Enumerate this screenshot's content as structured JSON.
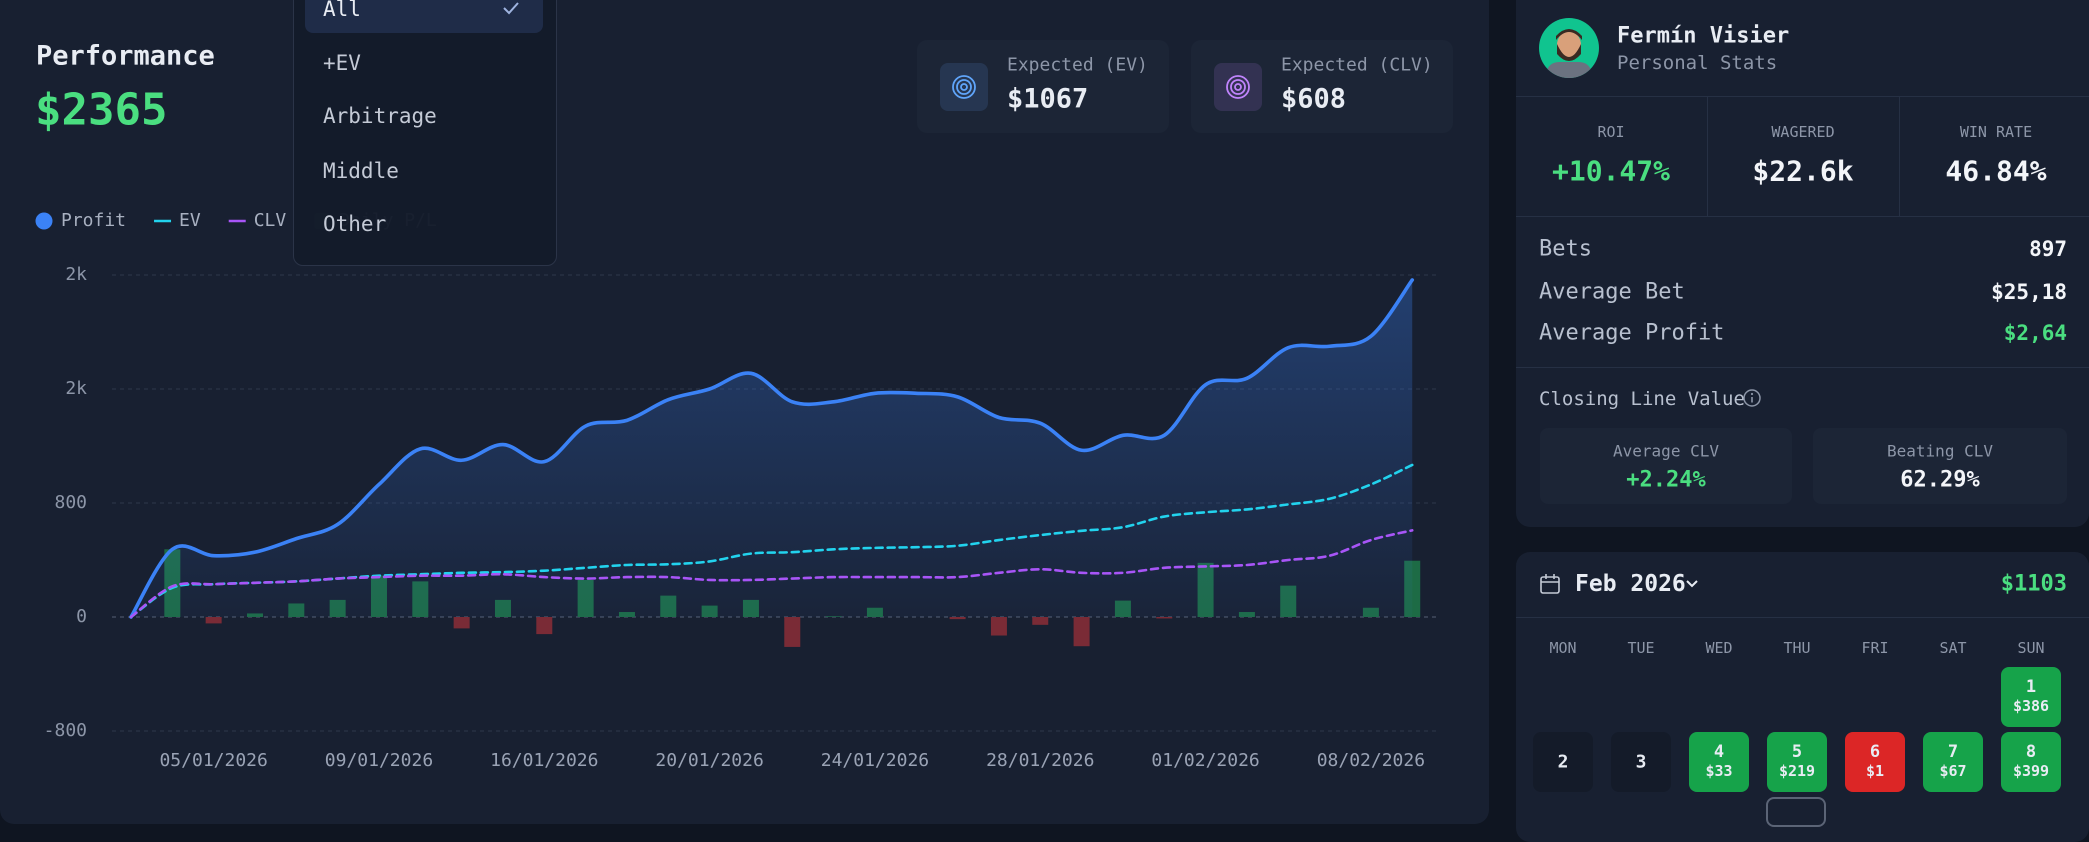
{
  "performance": {
    "title": "Performance",
    "value": "$2365"
  },
  "dropdown": {
    "items": [
      "All",
      "+EV",
      "Arbitrage",
      "Middle",
      "Other"
    ],
    "selected": 0
  },
  "kpis": [
    {
      "label": "Expected (EV)",
      "value": "$1067",
      "color": "#60a5fa"
    },
    {
      "label": "Expected (CLV)",
      "value": "$608",
      "color": "#c084fc"
    }
  ],
  "chart_data": {
    "type": "line",
    "categories": [
      null,
      null,
      "05/01/2026",
      null,
      null,
      null,
      "09/01/2026",
      null,
      null,
      null,
      "16/01/2026",
      null,
      null,
      null,
      "20/01/2026",
      null,
      null,
      null,
      "24/01/2026",
      null,
      null,
      null,
      "28/01/2026",
      null,
      null,
      null,
      "01/02/2026",
      null,
      null,
      null,
      "08/02/2026",
      null
    ],
    "series": [
      {
        "name": "Profit",
        "color": "#3b82f6",
        "fill": true,
        "values": [
          0,
          475,
          430,
          455,
          550,
          650,
          930,
          1180,
          1100,
          1210,
          1090,
          1340,
          1380,
          1525,
          1600,
          1710,
          1510,
          1510,
          1570,
          1570,
          1545,
          1400,
          1360,
          1170,
          1275,
          1275,
          1630,
          1675,
          1890,
          1900,
          1970,
          2365
        ]
      },
      {
        "name": "EV",
        "color": "#22d3ee",
        "dashed": true,
        "values": [
          0,
          205,
          230,
          240,
          250,
          270,
          290,
          300,
          310,
          315,
          325,
          345,
          365,
          370,
          390,
          445,
          455,
          475,
          485,
          490,
          500,
          540,
          575,
          605,
          630,
          705,
          735,
          755,
          790,
          830,
          930,
          1067
        ]
      },
      {
        "name": "CLV",
        "color": "#a855f7",
        "dashed": true,
        "values": [
          0,
          215,
          230,
          240,
          250,
          270,
          280,
          290,
          290,
          300,
          280,
          270,
          280,
          280,
          260,
          260,
          270,
          280,
          280,
          280,
          280,
          310,
          335,
          310,
          310,
          345,
          355,
          365,
          400,
          430,
          540,
          608
        ]
      },
      {
        "name": "Daily P/L",
        "kind": "bar",
        "color": "#1d6b45",
        "negative_color": "#7a2b36",
        "values": [
          0,
          475,
          -45,
          25,
          95,
          120,
          290,
          250,
          -80,
          120,
          -120,
          260,
          35,
          150,
          80,
          120,
          -210,
          5,
          65,
          0,
          -15,
          -130,
          -55,
          -205,
          115,
          -10,
          380,
          35,
          220,
          0,
          65,
          395
        ]
      }
    ],
    "ylim": [
      -800,
      2400
    ],
    "yticks": [
      -800,
      0,
      800,
      {
        "value": 1600,
        "label": "2k"
      },
      {
        "value": 2400,
        "label": "2k"
      }
    ],
    "grid": true
  },
  "profile": {
    "name": "Fermín Visier",
    "subtitle": "Personal Stats",
    "stats": [
      {
        "label": "ROI",
        "value": "+10.47%",
        "color": "#4ade80"
      },
      {
        "label": "WAGERED",
        "value": "$22.6k"
      },
      {
        "label": "WIN RATE",
        "value": "46.84%"
      }
    ],
    "rows": [
      {
        "label": "Bets",
        "value": "897"
      },
      {
        "label": "Average Bet",
        "value": "$25,18"
      },
      {
        "label": "Average Profit",
        "value": "$2,64",
        "color": "#4ade80"
      }
    ],
    "clv": {
      "title": "Closing Line Value",
      "cards": [
        {
          "label": "Average CLV",
          "value": "+2.24%",
          "color": "#4ade80"
        },
        {
          "label": "Beating CLV",
          "value": "62.29%"
        }
      ]
    }
  },
  "calendar": {
    "month": "Feb 2026",
    "total": "$1103",
    "weekdays": [
      "MON",
      "TUE",
      "WED",
      "THU",
      "FRI",
      "SAT",
      "SUN"
    ],
    "days": [
      {
        "day": 1,
        "amount": "$386",
        "color": "#16a34a"
      },
      {
        "day": 2
      },
      {
        "day": 3
      },
      {
        "day": 4,
        "amount": "$33",
        "color": "#16a34a"
      },
      {
        "day": 5,
        "amount": "$219",
        "color": "#16a34a"
      },
      {
        "day": 6,
        "amount": "$1",
        "color": "#dc2626"
      },
      {
        "day": 7,
        "amount": "$67",
        "color": "#16a34a"
      },
      {
        "day": 8,
        "amount": "$399",
        "color": "#16a34a"
      }
    ]
  }
}
